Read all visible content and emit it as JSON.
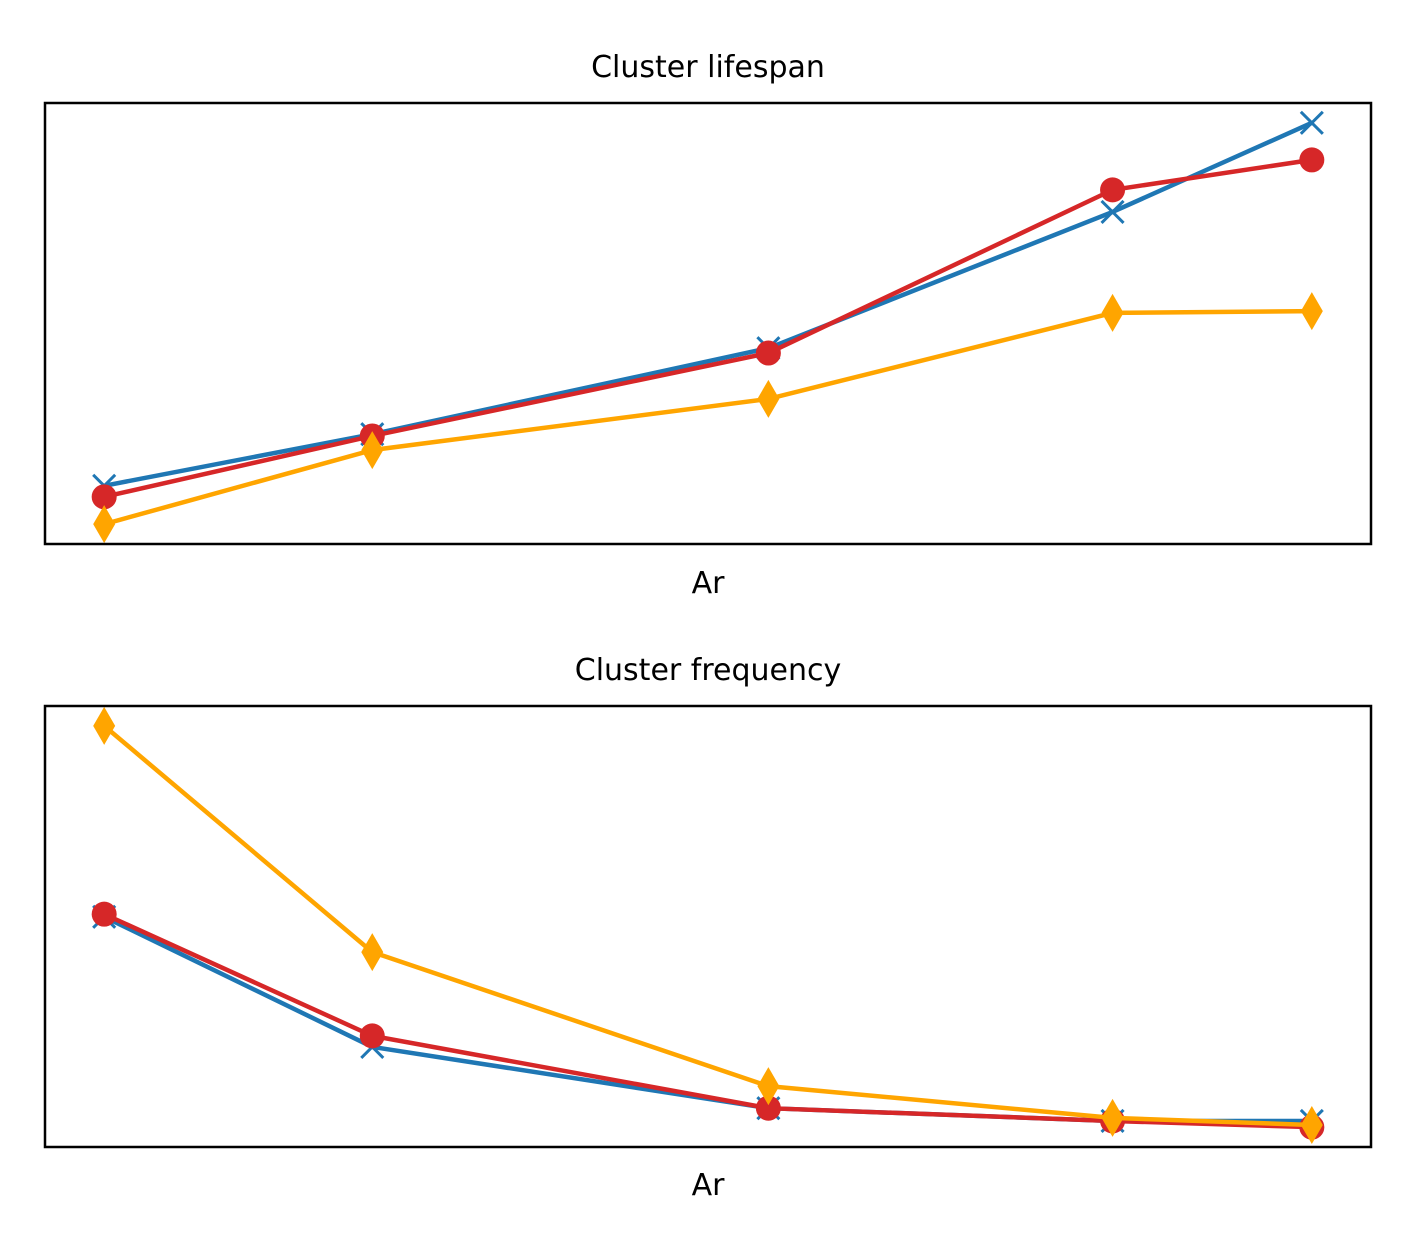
{
  "chart_data": [
    {
      "type": "line",
      "title": "Cluster lifespan",
      "xlabel": "Ar",
      "ylabel": "",
      "x": [
        0,
        22.2,
        55.0,
        83.5,
        100
      ],
      "xlim": [
        -4.9,
        104.9
      ],
      "ylim": [
        0,
        100
      ],
      "ticks_shown": false,
      "grid": false,
      "series": [
        {
          "color": "#1f77b4",
          "marker": "x",
          "values": [
            13.2,
            24.9,
            44.4,
            75.3,
            95.5
          ]
        },
        {
          "color": "#d62728",
          "marker": "circle",
          "values": [
            10.7,
            24.5,
            43.3,
            80.3,
            87.1
          ]
        },
        {
          "color": "#ffa500",
          "marker": "diamond",
          "values": [
            4.5,
            21.3,
            32.9,
            52.4,
            52.8
          ]
        }
      ]
    },
    {
      "type": "line",
      "title": "Cluster frequency",
      "xlabel": "Ar",
      "ylabel": "",
      "x": [
        0,
        22.2,
        55.0,
        83.5,
        100
      ],
      "xlim": [
        -4.9,
        104.9
      ],
      "ylim": [
        0,
        100
      ],
      "ticks_shown": false,
      "grid": false,
      "series": [
        {
          "color": "#1f77b4",
          "marker": "x",
          "values": [
            52.2,
            22.7,
            8.8,
            5.9,
            5.9
          ]
        },
        {
          "color": "#d62728",
          "marker": "circle",
          "values": [
            52.8,
            25.2,
            8.8,
            5.9,
            4.5
          ]
        },
        {
          "color": "#ffa500",
          "marker": "diamond",
          "values": [
            95.5,
            44.2,
            13.8,
            6.6,
            5.0
          ]
        }
      ]
    }
  ]
}
